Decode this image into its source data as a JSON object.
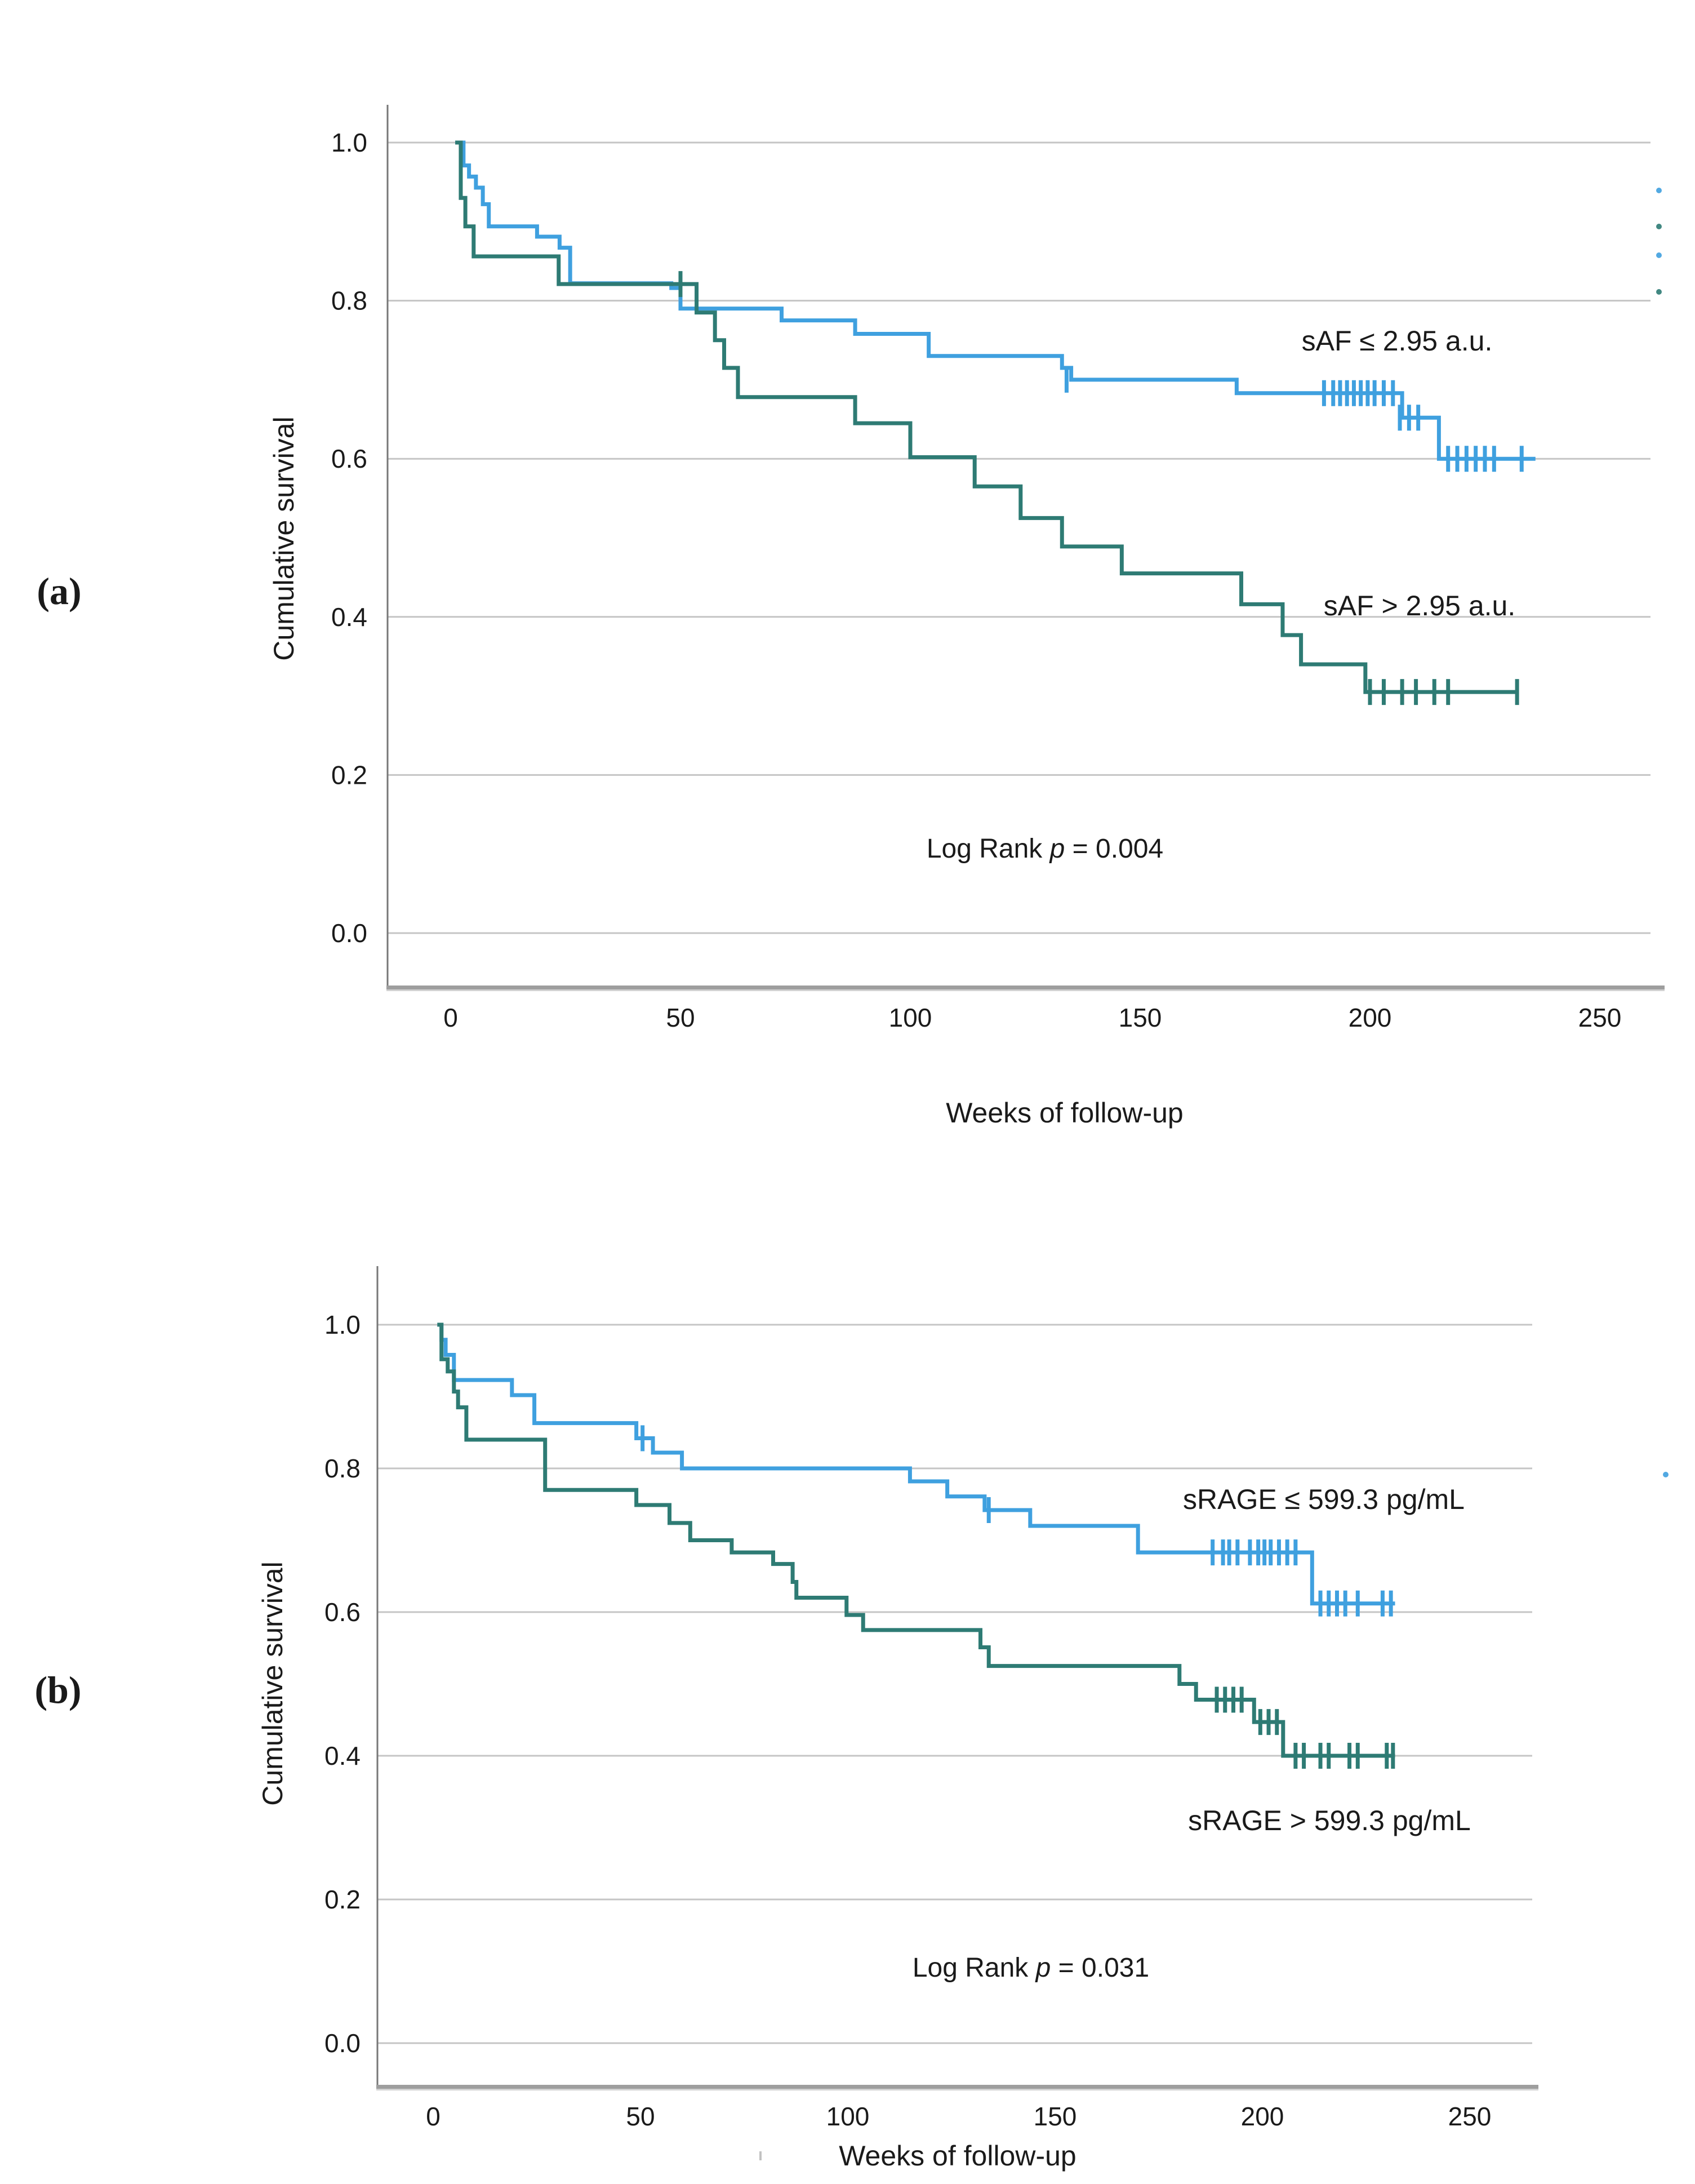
{
  "colors": {
    "blue": "#3FA0DF",
    "teal": "#2E7B74",
    "grid": "#C5C5C5",
    "axis": "#8C8C8C",
    "axis_bottom": "#9E9E9E",
    "axis_bottom_shadow": "#D2D2D2",
    "text": "#1A1A1A"
  },
  "chart_data": [
    {
      "id": "a",
      "type": "line",
      "subtype": "kaplan-meier-step",
      "panel_label": "(a)",
      "title": "",
      "xlabel": "Weeks of follow-up",
      "ylabel": "Cumulative survival",
      "x_ticks": [
        0,
        50,
        100,
        150,
        200,
        250
      ],
      "y_tick_labels": [
        "1.0",
        "0.8",
        "0.6",
        "0.4",
        "0.2",
        "0.0"
      ],
      "y_tick_values": [
        1.0,
        0.8,
        0.6,
        0.4,
        0.2,
        0.0
      ],
      "xlim": [
        -14,
        264
      ],
      "ylim": [
        0.0,
        1.05
      ],
      "grid": true,
      "legend_position": "inline-labels",
      "log_rank": {
        "prefix": "Log Rank ",
        "p_symbol": "p",
        "equals_value": " = 0.004"
      },
      "series": [
        {
          "name": "sAF ≤ 2.95 a.u.",
          "color_key": "blue",
          "steps": [
            [
              1,
              1.0
            ],
            [
              2.8,
              0.971
            ],
            [
              4,
              0.957
            ],
            [
              5.5,
              0.943
            ],
            [
              7,
              0.922
            ],
            [
              8.3,
              0.894
            ],
            [
              18.8,
              0.881
            ],
            [
              23.7,
              0.867
            ],
            [
              26,
              0.822
            ],
            [
              48,
              0.816
            ],
            [
              50,
              0.79
            ],
            [
              72,
              0.775
            ],
            [
              88,
              0.758
            ],
            [
              104,
              0.73
            ],
            [
              133,
              0.715
            ],
            [
              135,
              0.7
            ],
            [
              171,
              0.683
            ],
            [
              207,
              0.652
            ],
            [
              215,
              0.6
            ]
          ],
          "end_week": 236,
          "censors": [
            [
              134,
              0.7
            ],
            [
              190,
              0.683
            ],
            [
              192,
              0.683
            ],
            [
              193.5,
              0.683
            ],
            [
              195,
              0.683
            ],
            [
              196.5,
              0.683
            ],
            [
              198,
              0.683
            ],
            [
              199.5,
              0.683
            ],
            [
              201,
              0.683
            ],
            [
              203,
              0.683
            ],
            [
              205,
              0.683
            ],
            [
              206.5,
              0.652
            ],
            [
              208.5,
              0.652
            ],
            [
              210.5,
              0.652
            ],
            [
              217,
              0.6
            ],
            [
              219,
              0.6
            ],
            [
              221,
              0.6
            ],
            [
              223,
              0.6
            ],
            [
              225,
              0.6
            ],
            [
              227,
              0.6
            ],
            [
              233,
              0.6
            ]
          ]
        },
        {
          "name": "sAF > 2.95 a.u.",
          "color_key": "teal",
          "steps": [
            [
              1,
              1.0
            ],
            [
              2.2,
              0.93
            ],
            [
              3.2,
              0.894
            ],
            [
              5,
              0.856
            ],
            [
              23.5,
              0.821
            ],
            [
              53.5,
              0.785
            ],
            [
              57.5,
              0.75
            ],
            [
              59.5,
              0.715
            ],
            [
              62.5,
              0.678
            ],
            [
              88,
              0.645
            ],
            [
              100,
              0.602
            ],
            [
              114,
              0.565
            ],
            [
              124,
              0.525
            ],
            [
              133,
              0.489
            ],
            [
              146,
              0.455
            ],
            [
              172,
              0.416
            ],
            [
              181,
              0.377
            ],
            [
              185,
              0.34
            ],
            [
              199,
              0.305
            ]
          ],
          "end_week": 232,
          "censors": [
            [
              50,
              0.821
            ],
            [
              200,
              0.305
            ],
            [
              203,
              0.305
            ],
            [
              207,
              0.305
            ],
            [
              210,
              0.305
            ],
            [
              214,
              0.305
            ],
            [
              217,
              0.305
            ],
            [
              232,
              0.305
            ]
          ]
        }
      ],
      "stray_dots": [
        {
          "x": 2945,
          "y": 338,
          "color_key": "blue"
        },
        {
          "x": 2945,
          "y": 402,
          "color_key": "teal"
        },
        {
          "x": 2945,
          "y": 453,
          "color_key": "blue"
        },
        {
          "x": 2945,
          "y": 518,
          "color_key": "teal"
        }
      ]
    },
    {
      "id": "b",
      "type": "line",
      "subtype": "kaplan-meier-step",
      "panel_label": "(b)",
      "title": "",
      "xlabel": "Weeks of follow-up",
      "ylabel": "Cumulative survival",
      "x_ticks": [
        0,
        50,
        100,
        150,
        200,
        250
      ],
      "y_tick_labels": [
        "1.0",
        "0.8",
        "0.6",
        "0.4",
        "0.2",
        "0.0"
      ],
      "y_tick_values": [
        1.0,
        0.8,
        0.6,
        0.4,
        0.2,
        0.0
      ],
      "xlim": [
        -14,
        265
      ],
      "ylim": [
        0.0,
        1.05
      ],
      "grid": true,
      "legend_position": "inline-labels",
      "log_rank": {
        "prefix": "Log Rank ",
        "p_symbol": "p",
        "equals_value": " = 0.031"
      },
      "series": [
        {
          "name": "sRAGE ≤ 599.3 pg/mL",
          "color_key": "blue",
          "steps": [
            [
              1,
              1.0
            ],
            [
              2,
              0.979
            ],
            [
              3,
              0.958
            ],
            [
              5,
              0.923
            ],
            [
              19,
              0.902
            ],
            [
              24.4,
              0.863
            ],
            [
              49,
              0.842
            ],
            [
              53,
              0.822
            ],
            [
              60,
              0.8
            ],
            [
              115,
              0.782
            ],
            [
              124,
              0.761
            ],
            [
              133,
              0.742
            ],
            [
              144,
              0.72
            ],
            [
              170,
              0.683
            ],
            [
              212,
              0.612
            ]
          ],
          "end_week": 232,
          "censors": [
            [
              50.5,
              0.842
            ],
            [
              134,
              0.742
            ],
            [
              188,
              0.683
            ],
            [
              190.5,
              0.683
            ],
            [
              192,
              0.683
            ],
            [
              194,
              0.683
            ],
            [
              197,
              0.683
            ],
            [
              199,
              0.683
            ],
            [
              200.5,
              0.683
            ],
            [
              202,
              0.683
            ],
            [
              204,
              0.683
            ],
            [
              206,
              0.683
            ],
            [
              208,
              0.683
            ],
            [
              214,
              0.612
            ],
            [
              216,
              0.612
            ],
            [
              218,
              0.612
            ],
            [
              220,
              0.612
            ],
            [
              223,
              0.612
            ],
            [
              229,
              0.612
            ],
            [
              231,
              0.612
            ]
          ]
        },
        {
          "name": "sRAGE > 599.3 pg/mL",
          "color_key": "teal",
          "steps": [
            [
              1,
              1.0
            ],
            [
              2,
              0.952
            ],
            [
              3.5,
              0.935
            ],
            [
              5,
              0.907
            ],
            [
              6,
              0.885
            ],
            [
              8,
              0.84
            ],
            [
              27,
              0.77
            ],
            [
              49,
              0.749
            ],
            [
              57,
              0.724
            ],
            [
              62,
              0.7
            ],
            [
              72,
              0.683
            ],
            [
              82,
              0.667
            ],
            [
              86.7,
              0.642
            ],
            [
              87.6,
              0.62
            ],
            [
              99.7,
              0.596
            ],
            [
              103.7,
              0.575
            ],
            [
              132,
              0.551
            ],
            [
              134,
              0.525
            ],
            [
              180,
              0.5
            ],
            [
              184,
              0.478
            ],
            [
              198,
              0.447
            ],
            [
              205,
              0.4
            ]
          ],
          "end_week": 232,
          "censors": [
            [
              189,
              0.478
            ],
            [
              191,
              0.478
            ],
            [
              193,
              0.478
            ],
            [
              195,
              0.478
            ],
            [
              199.5,
              0.447
            ],
            [
              201.5,
              0.447
            ],
            [
              203.5,
              0.447
            ],
            [
              208,
              0.4
            ],
            [
              210,
              0.4
            ],
            [
              214,
              0.4
            ],
            [
              216,
              0.4
            ],
            [
              221,
              0.4
            ],
            [
              223,
              0.4
            ],
            [
              230,
              0.4
            ],
            [
              231.5,
              0.4
            ]
          ]
        }
      ],
      "stray_dots": [
        {
          "x": 2957,
          "y": 2617,
          "color_key": "blue"
        }
      ],
      "stray_dash": {
        "x": 1350,
        "y": 3826
      }
    }
  ]
}
